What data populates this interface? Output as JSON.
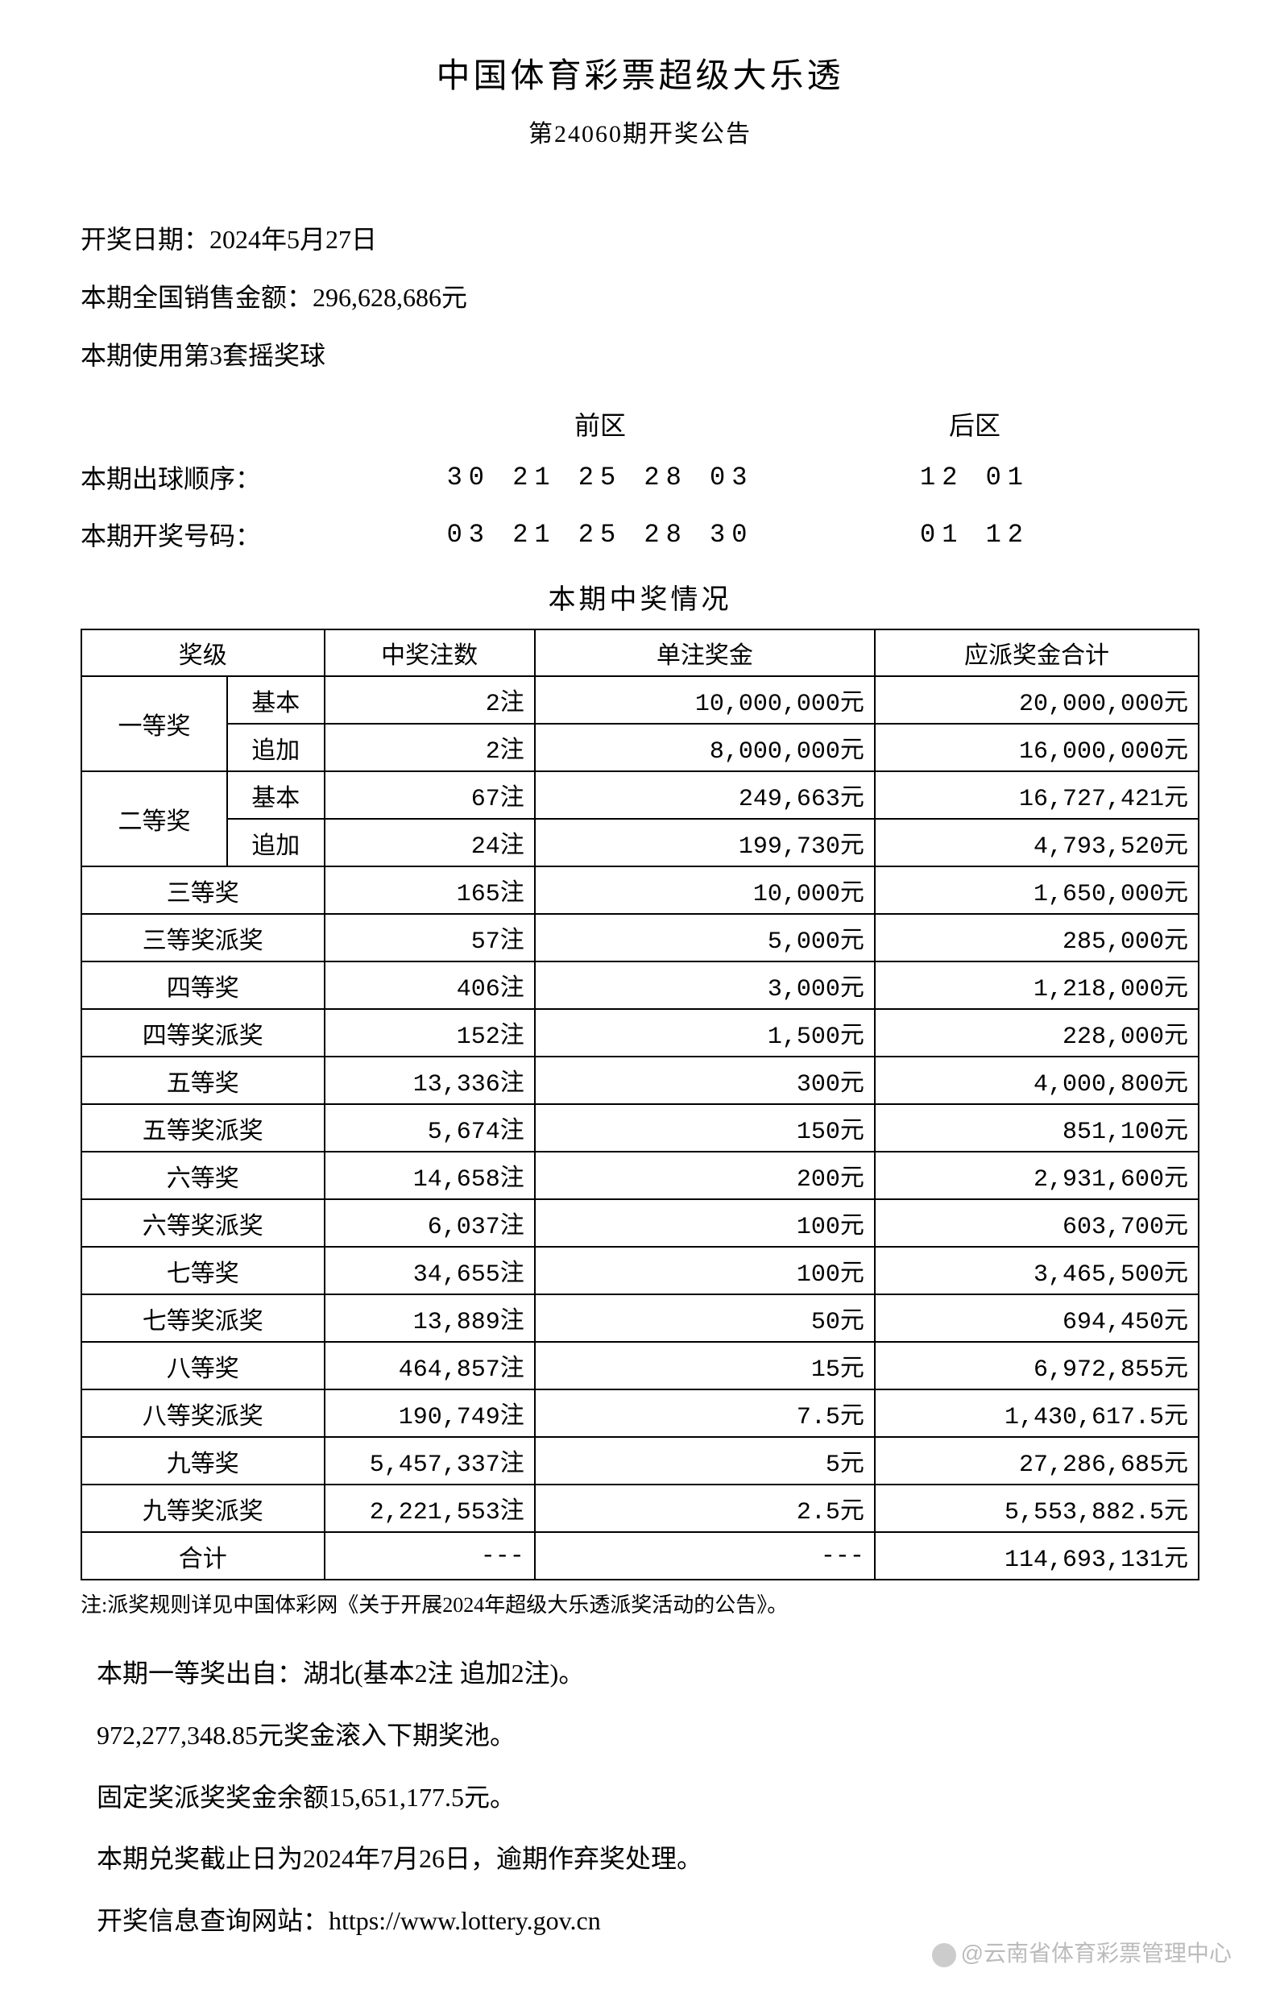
{
  "header": {
    "title": "中国体育彩票超级大乐透",
    "subtitle": "第24060期开奖公告"
  },
  "info": {
    "draw_date": "开奖日期：2024年5月27日",
    "sales_amount": "本期全国销售金额：296,628,686元",
    "ball_set": "本期使用第3套摇奖球"
  },
  "zones": {
    "front_label": "前区",
    "back_label": "后区"
  },
  "numbers": {
    "draw_order_label": "本期出球顺序：",
    "draw_order_front": "30 21 25 28 03",
    "draw_order_back": "12 01",
    "winning_label": "本期开奖号码：",
    "winning_front": "03 21 25 28 30",
    "winning_back": "01 12"
  },
  "table": {
    "title": "本期中奖情况",
    "headers": {
      "level": "奖级",
      "count": "中奖注数",
      "amount": "单注奖金",
      "total": "应派奖金合计"
    },
    "rows": [
      {
        "level": "一等奖",
        "sub": "基本",
        "count": "2注",
        "amount": "10,000,000元",
        "total": "20,000,000元",
        "rowspan": 2
      },
      {
        "sub": "追加",
        "count": "2注",
        "amount": "8,000,000元",
        "total": "16,000,000元"
      },
      {
        "level": "二等奖",
        "sub": "基本",
        "count": "67注",
        "amount": "249,663元",
        "total": "16,727,421元",
        "rowspan": 2
      },
      {
        "sub": "追加",
        "count": "24注",
        "amount": "199,730元",
        "total": "4,793,520元"
      },
      {
        "level": "三等奖",
        "count": "165注",
        "amount": "10,000元",
        "total": "1,650,000元",
        "colspan": 2
      },
      {
        "level": "三等奖派奖",
        "count": "57注",
        "amount": "5,000元",
        "total": "285,000元",
        "colspan": 2
      },
      {
        "level": "四等奖",
        "count": "406注",
        "amount": "3,000元",
        "total": "1,218,000元",
        "colspan": 2
      },
      {
        "level": "四等奖派奖",
        "count": "152注",
        "amount": "1,500元",
        "total": "228,000元",
        "colspan": 2
      },
      {
        "level": "五等奖",
        "count": "13,336注",
        "amount": "300元",
        "total": "4,000,800元",
        "colspan": 2
      },
      {
        "level": "五等奖派奖",
        "count": "5,674注",
        "amount": "150元",
        "total": "851,100元",
        "colspan": 2
      },
      {
        "level": "六等奖",
        "count": "14,658注",
        "amount": "200元",
        "total": "2,931,600元",
        "colspan": 2
      },
      {
        "level": "六等奖派奖",
        "count": "6,037注",
        "amount": "100元",
        "total": "603,700元",
        "colspan": 2
      },
      {
        "level": "七等奖",
        "count": "34,655注",
        "amount": "100元",
        "total": "3,465,500元",
        "colspan": 2
      },
      {
        "level": "七等奖派奖",
        "count": "13,889注",
        "amount": "50元",
        "total": "694,450元",
        "colspan": 2
      },
      {
        "level": "八等奖",
        "count": "464,857注",
        "amount": "15元",
        "total": "6,972,855元",
        "colspan": 2
      },
      {
        "level": "八等奖派奖",
        "count": "190,749注",
        "amount": "7.5元",
        "total": "1,430,617.5元",
        "colspan": 2
      },
      {
        "level": "九等奖",
        "count": "5,457,337注",
        "amount": "5元",
        "total": "27,286,685元",
        "colspan": 2
      },
      {
        "level": "九等奖派奖",
        "count": "2,221,553注",
        "amount": "2.5元",
        "total": "5,553,882.5元",
        "colspan": 2
      },
      {
        "level": "合计",
        "count": "---",
        "amount": "---",
        "total": "114,693,131元",
        "colspan": 2
      }
    ]
  },
  "footer_note": "注:派奖规则详见中国体彩网《关于开展2024年超级大乐透派奖活动的公告》。",
  "below": {
    "line1": "本期一等奖出自：湖北(基本2注 追加2注)。",
    "line2": "972,277,348.85元奖金滚入下期奖池。",
    "line3": "固定奖派奖奖金余额15,651,177.5元。",
    "line4": "本期兑奖截止日为2024年7月26日，逾期作弃奖处理。",
    "line5": "开奖信息查询网站：https://www.lottery.gov.cn"
  },
  "watermark": "@云南省体育彩票管理中心",
  "styling": {
    "body_width": 1589,
    "body_height": 2494,
    "bg_color": "#ffffff",
    "text_color": "#000000",
    "border_color": "#000000",
    "watermark_color": "#bbbbbb",
    "title_fontsize": 42,
    "subtitle_fontsize": 30,
    "body_fontsize": 32,
    "table_fontsize": 30,
    "note_fontsize": 26
  }
}
